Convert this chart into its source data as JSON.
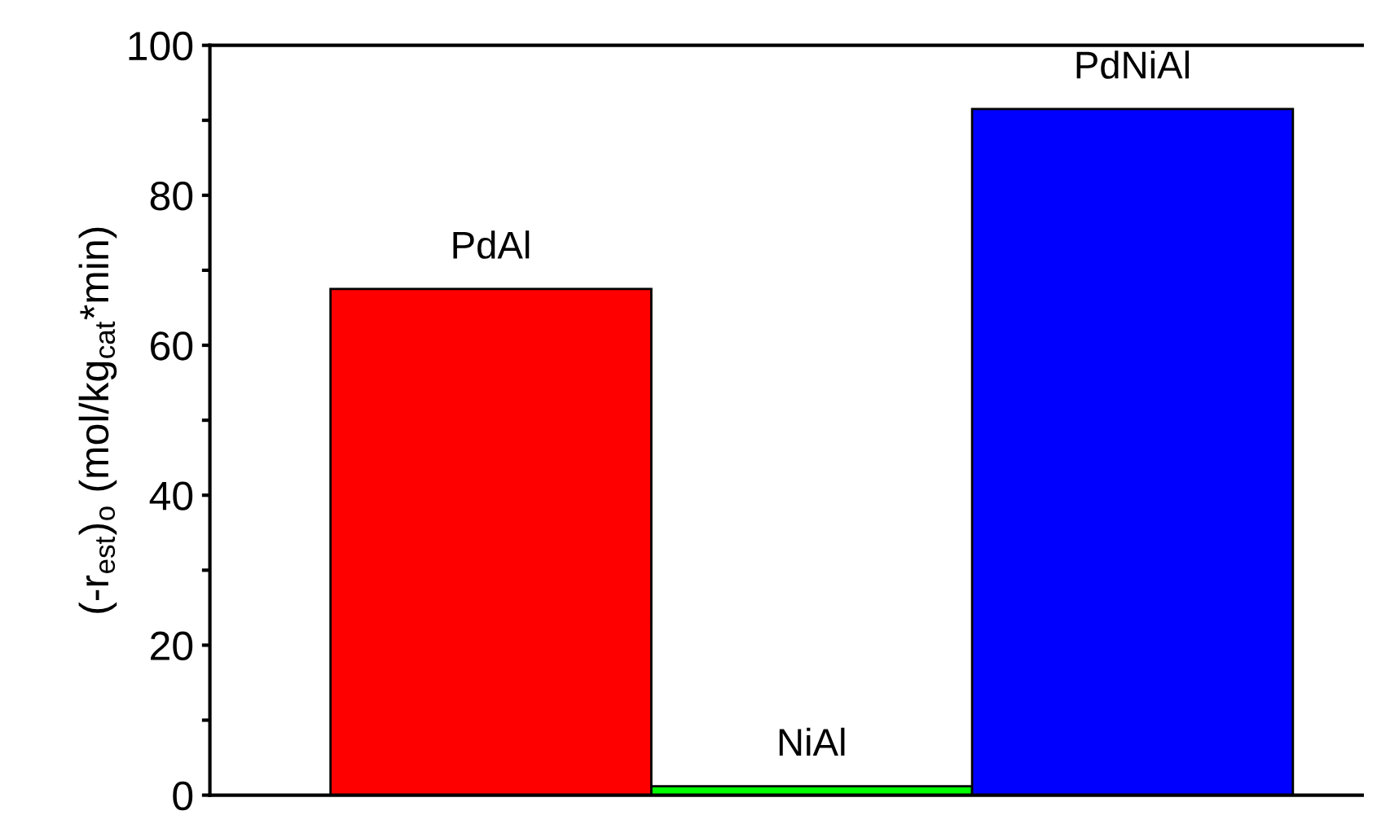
{
  "chart_data": {
    "type": "bar",
    "ylabel": "(-r$_{est}$)$_{o}$ (mol/kg$_{cat}$*min)",
    "categories": [
      "PdAl",
      "NiAl",
      "PdNiAl"
    ],
    "values": [
      67.5,
      1.2,
      91.5
    ],
    "colors": [
      "#ff0000",
      "#00ff00",
      "#0000ff"
    ],
    "ylim": [
      0,
      100
    ],
    "yticks": [
      0,
      {
        "value": 10,
        "label": null
      },
      20,
      {
        "value": 30,
        "label": null
      },
      40,
      {
        "value": 50,
        "label": null
      },
      60,
      {
        "value": 70,
        "label": null
      },
      80,
      {
        "value": 90,
        "label": null
      },
      100
    ],
    "grid": false,
    "legend": false
  }
}
